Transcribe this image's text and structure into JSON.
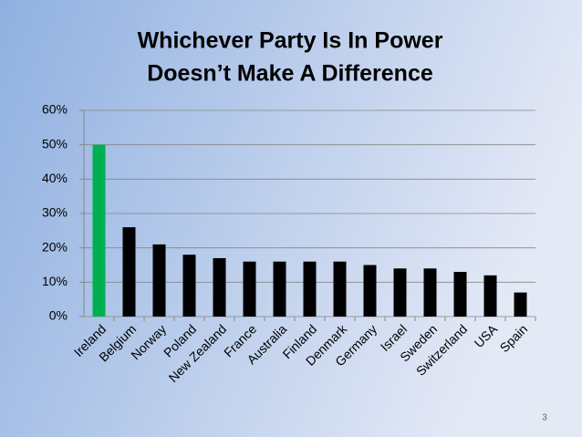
{
  "chart_data": {
    "type": "bar",
    "title": [
      "Whichever Party Is In Power",
      "Doesn’t Make A Difference"
    ],
    "categories": [
      "Ireland",
      "Belgium",
      "Norway",
      "Poland",
      "New Zealand",
      "France",
      "Australia",
      "Finland",
      "Denmark",
      "Germany",
      "Israel",
      "Sweden",
      "Switzerland",
      "USA",
      "Spain"
    ],
    "values": [
      50,
      26,
      21,
      18,
      17,
      16,
      16,
      16,
      16,
      15,
      14,
      14,
      13,
      12,
      7
    ],
    "colors": [
      "#00b050",
      "#000000",
      "#000000",
      "#000000",
      "#000000",
      "#000000",
      "#000000",
      "#000000",
      "#000000",
      "#000000",
      "#000000",
      "#000000",
      "#000000",
      "#000000",
      "#000000"
    ],
    "ylim": [
      0,
      60
    ],
    "yticks": [
      {
        "value": 0,
        "label": "0%"
      },
      {
        "value": 10,
        "label": "10%"
      },
      {
        "value": 20,
        "label": "20%"
      },
      {
        "value": 30,
        "label": "30%"
      },
      {
        "value": 40,
        "label": "40%"
      },
      {
        "value": 50,
        "label": "50%"
      },
      {
        "value": 60,
        "label": "60%"
      }
    ],
    "grid": true
  },
  "slide_number": 3
}
